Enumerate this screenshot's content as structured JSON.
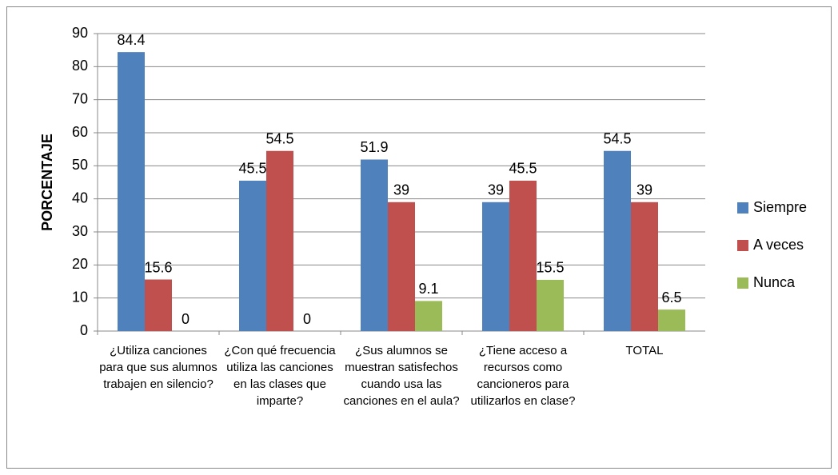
{
  "chart_data": {
    "type": "bar",
    "y_label": "PORCENTAJE",
    "categories": [
      "¿Utiliza canciones para que sus alumnos trabajen en silencio?",
      "¿Con qué frecuencia utiliza las canciones en las clases que imparte?",
      "¿Sus alumnos se muestran satisfechos cuando usa las canciones en el aula?",
      "¿Tiene acceso a recursos como cancioneros para utilizarlos en clase?",
      "TOTAL"
    ],
    "series": [
      {
        "name": "Siempre",
        "color": "#4f81bd",
        "values": [
          84.4,
          45.5,
          51.9,
          39,
          54.5
        ]
      },
      {
        "name": "A veces",
        "color": "#c0504d",
        "values": [
          15.6,
          54.5,
          39,
          45.5,
          39
        ]
      },
      {
        "name": "Nunca",
        "color": "#9bbb59",
        "values": [
          0,
          0,
          9.1,
          15.5,
          6.5
        ]
      }
    ],
    "ylim": [
      0,
      90
    ],
    "yticks": [
      0,
      10,
      20,
      30,
      40,
      50,
      60,
      70,
      80,
      90
    ],
    "grid": true,
    "legend": "right"
  }
}
